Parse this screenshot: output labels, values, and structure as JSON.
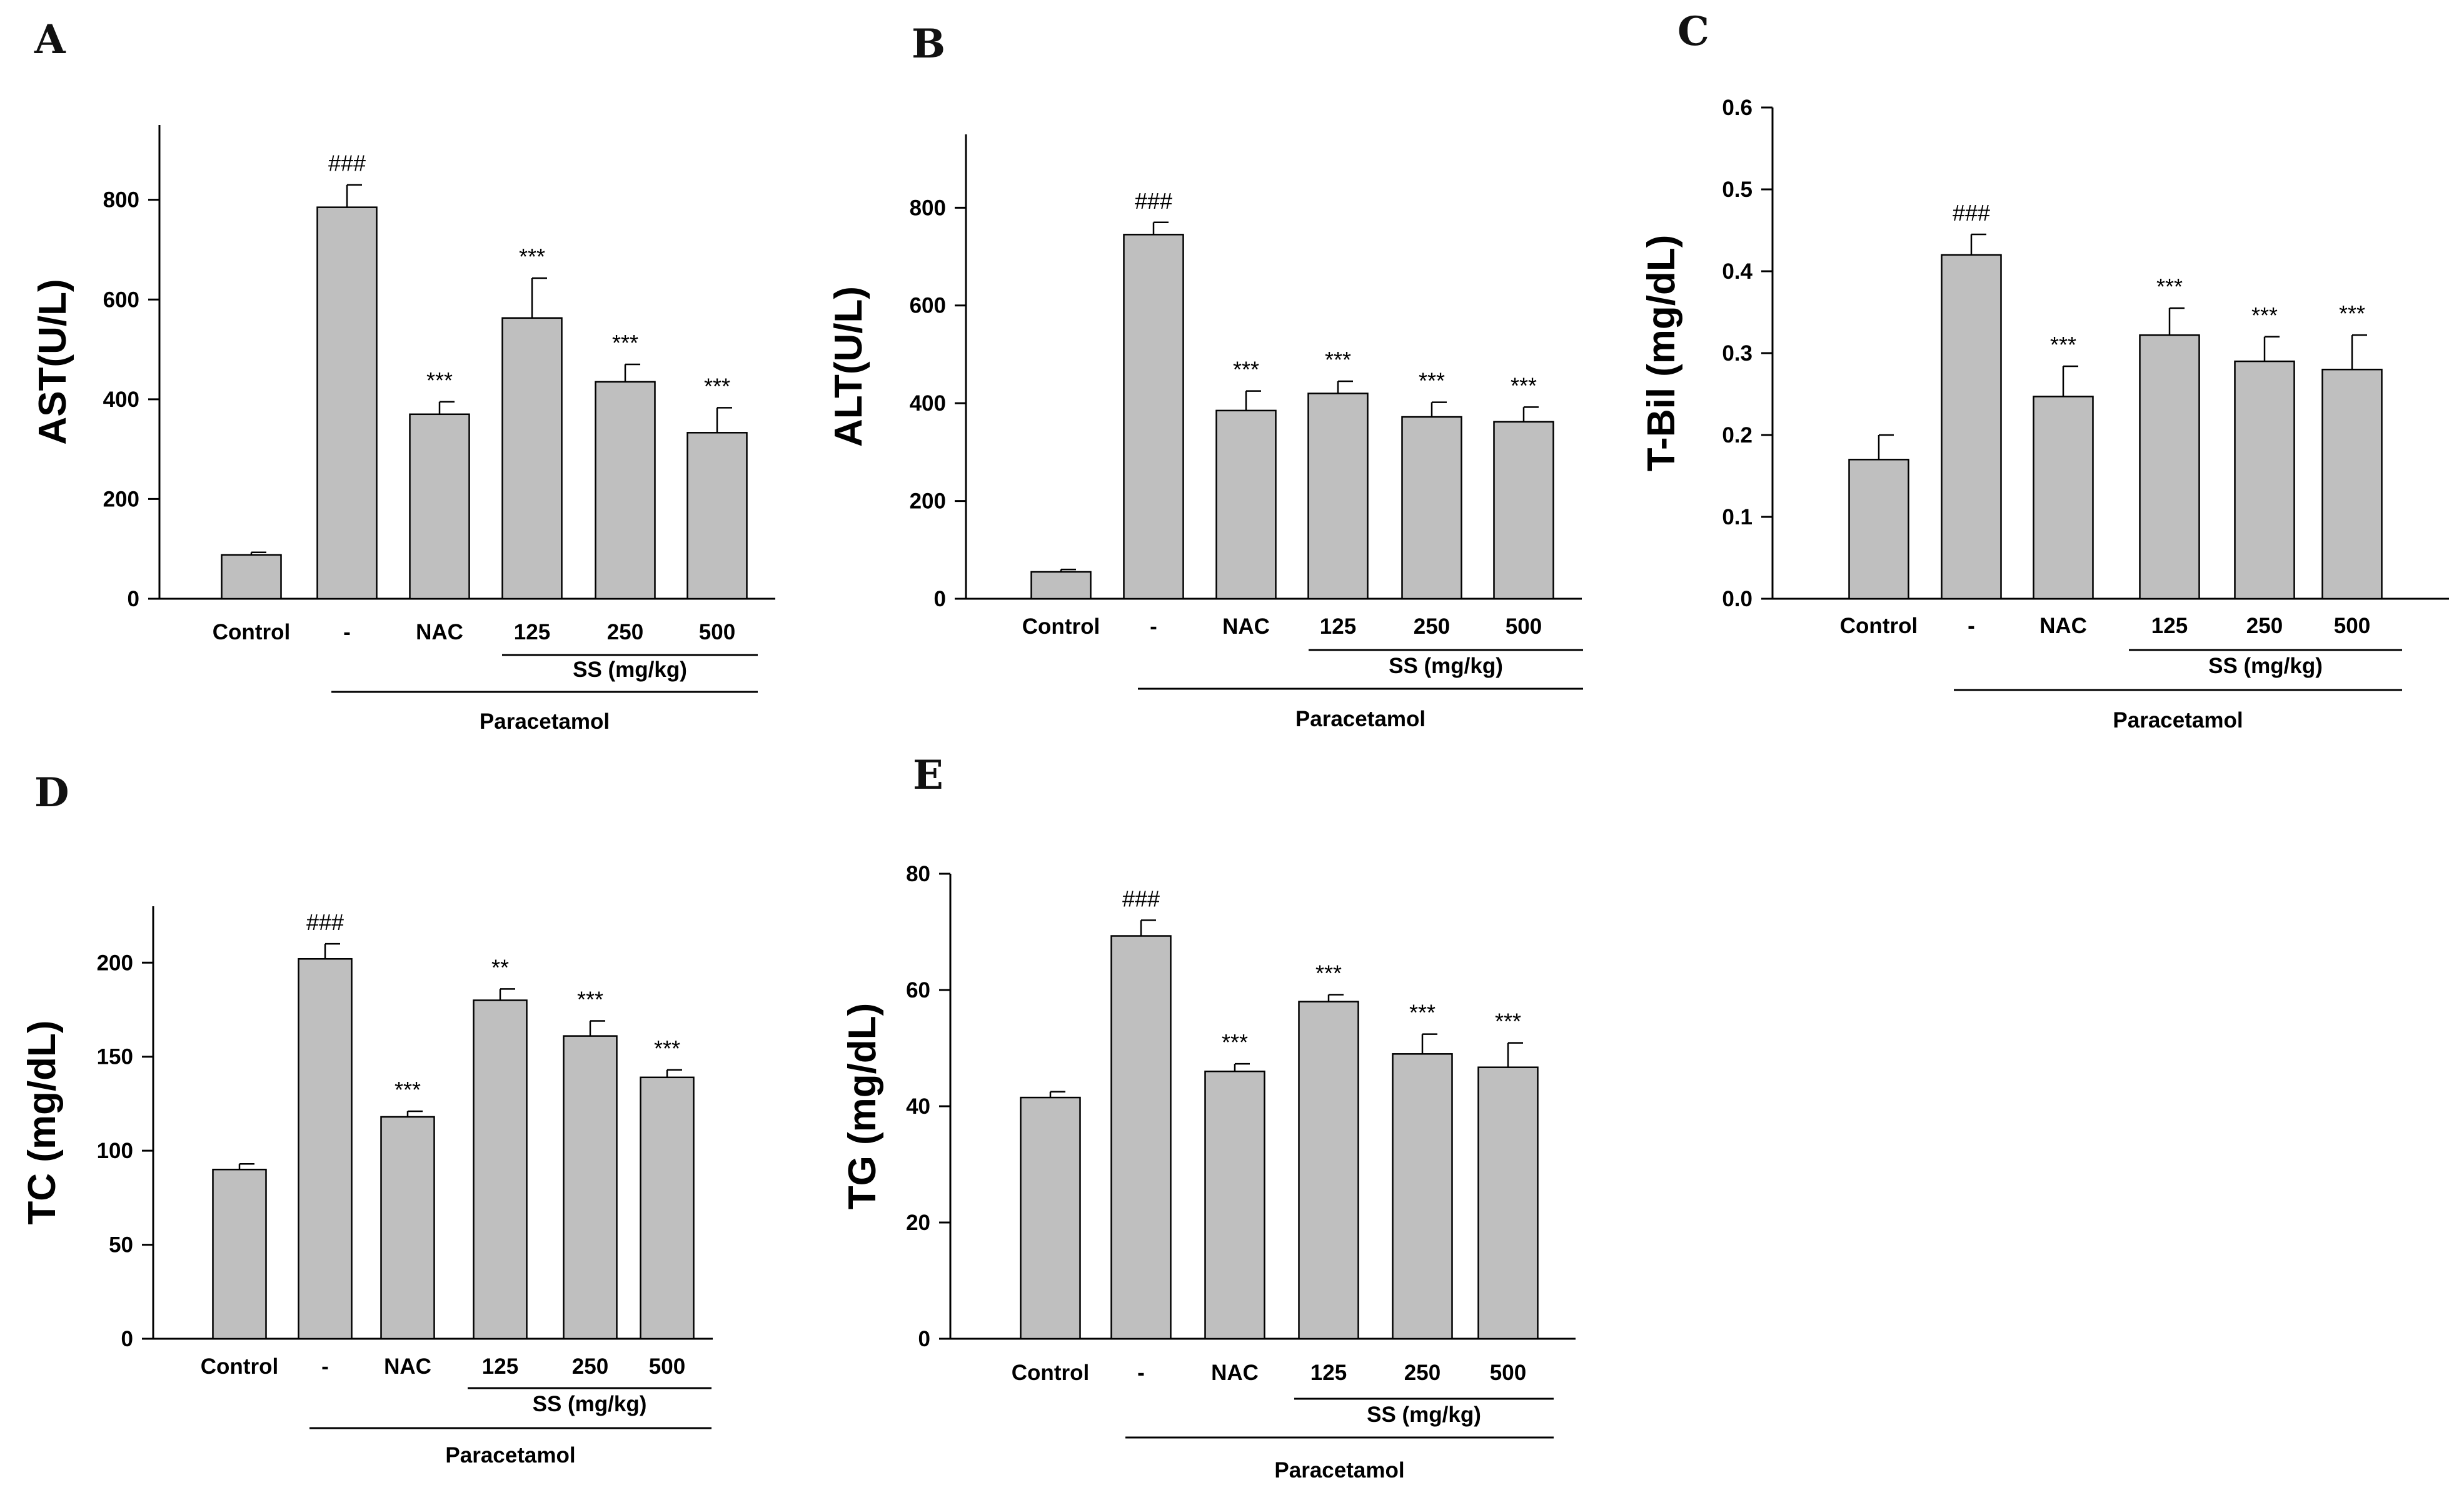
{
  "chart_data": [
    {
      "type": "bar",
      "panel": "A",
      "ylabel": "AST(U/L)",
      "ylim": [
        0,
        950
      ],
      "yticks": [
        0,
        200,
        400,
        600,
        800
      ],
      "categories": [
        "Control",
        "-",
        "NAC",
        "125",
        "250",
        "500"
      ],
      "values": [
        88,
        785,
        370,
        563,
        435,
        333
      ],
      "errors": [
        5,
        45,
        25,
        80,
        35,
        50
      ],
      "significance": [
        "",
        "###",
        "***",
        "***",
        "***",
        "***"
      ],
      "sublabel": "SS (mg/kg)",
      "group_label": "Paracetamol"
    },
    {
      "type": "bar",
      "panel": "B",
      "ylabel": "ALT(U/L)",
      "ylim": [
        0,
        950
      ],
      "yticks": [
        0,
        200,
        400,
        600,
        800
      ],
      "categories": [
        "Control",
        "-",
        "NAC",
        "125",
        "250",
        "500"
      ],
      "values": [
        55,
        745,
        385,
        420,
        372,
        362
      ],
      "errors": [
        5,
        25,
        40,
        25,
        30,
        30
      ],
      "significance": [
        "",
        "###",
        "***",
        "***",
        "***",
        "***"
      ],
      "sublabel": "SS (mg/kg)",
      "group_label": "Paracetamol"
    },
    {
      "type": "bar",
      "panel": "C",
      "ylabel": "T-Bil (mg/dL)",
      "ylim": [
        0,
        0.6
      ],
      "yticks": [
        0.0,
        0.1,
        0.2,
        0.3,
        0.4,
        0.5,
        0.6
      ],
      "ytick_labels": [
        "0.0",
        "0.1",
        "0.2",
        "0.3",
        "0.4",
        "0.5",
        "0.6"
      ],
      "categories": [
        "Control",
        "-",
        "NAC",
        "125",
        "250",
        "500"
      ],
      "values": [
        0.17,
        0.42,
        0.247,
        0.322,
        0.29,
        0.28
      ],
      "errors": [
        0.03,
        0.025,
        0.037,
        0.033,
        0.03,
        0.042
      ],
      "significance": [
        "",
        "###",
        "***",
        "***",
        "***",
        "***"
      ],
      "sublabel": "SS (mg/kg)",
      "group_label": "Paracetamol"
    },
    {
      "type": "bar",
      "panel": "D",
      "ylabel": "TC (mg/dL)",
      "ylim": [
        0,
        230
      ],
      "yticks": [
        0,
        50,
        100,
        150,
        200
      ],
      "categories": [
        "Control",
        "-",
        "NAC",
        "125",
        "250",
        "500"
      ],
      "values": [
        90,
        202,
        118,
        180,
        161,
        139
      ],
      "errors": [
        3,
        8,
        3,
        6,
        8,
        4
      ],
      "significance": [
        "",
        "###",
        "***",
        "**",
        "***",
        "***"
      ],
      "sublabel": "SS (mg/kg)",
      "group_label": "Paracetamol"
    },
    {
      "type": "bar",
      "panel": "E",
      "ylabel": "TG (mg/dL)",
      "ylim": [
        0,
        80
      ],
      "yticks": [
        0,
        20,
        40,
        60,
        80
      ],
      "categories": [
        "Control",
        "-",
        "NAC",
        "125",
        "250",
        "500"
      ],
      "values": [
        41.5,
        69.3,
        46,
        58,
        49,
        46.7
      ],
      "errors": [
        1,
        2.7,
        1.3,
        1.2,
        3.4,
        4.2
      ],
      "significance": [
        "",
        "###",
        "***",
        "***",
        "***",
        "***"
      ],
      "sublabel": "SS (mg/kg)",
      "group_label": "Paracetamol"
    }
  ]
}
